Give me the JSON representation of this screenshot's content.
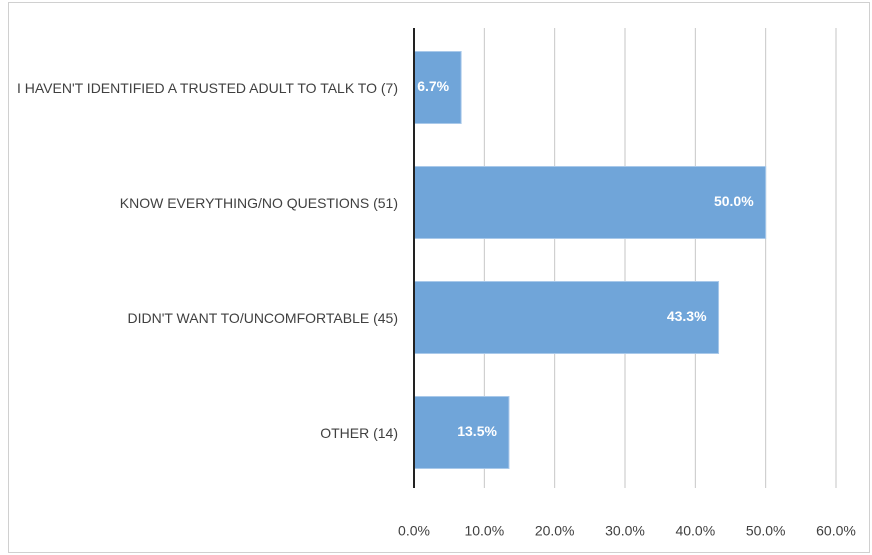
{
  "chart_data": {
    "type": "bar",
    "orientation": "horizontal",
    "categories": [
      "I HAVEN'T IDENTIFIED A TRUSTED ADULT TO TALK TO (7)",
      "KNOW EVERYTHING/NO QUESTIONS (51)",
      "DIDN'T WANT TO/UNCOMFORTABLE (45)",
      "OTHER (14)"
    ],
    "values": [
      6.7,
      50.0,
      43.3,
      13.5
    ],
    "value_labels": [
      "6.7%",
      "50.0%",
      "43.3%",
      "13.5%"
    ],
    "color": "#70a5d9",
    "xlim": [
      0,
      60
    ],
    "xticks": [
      {
        "value": 0,
        "label": "0.0%"
      },
      {
        "value": 10,
        "label": "10.0%"
      },
      {
        "value": 20,
        "label": "20.0%"
      },
      {
        "value": 30,
        "label": "30.0%"
      },
      {
        "value": 40,
        "label": "40.0%"
      },
      {
        "value": 50,
        "label": "50.0%"
      },
      {
        "value": 60,
        "label": "60.0%"
      }
    ],
    "grid": true
  }
}
